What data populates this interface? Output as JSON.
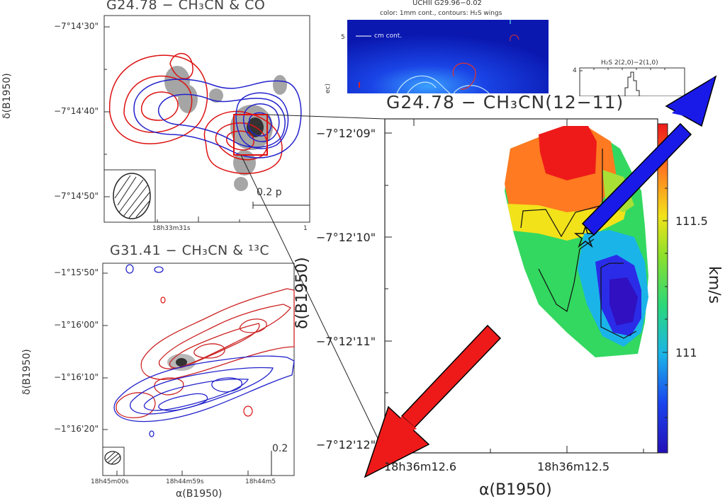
{
  "panel_a": {
    "title": "G24.78 − CH₃CN & CO",
    "ytick_1": "−7°14'30\"",
    "ytick_2": "−7°14'40\"",
    "ytick_3": "−7°14'50\"",
    "ylabel": "δ(B1950)",
    "xtick_1": "18h33m31s",
    "xtick_2": "1",
    "scalebar": "0.2 p"
  },
  "panel_b": {
    "title": "G31.41 − CH₃CN & ¹³C",
    "ytick_1": "−1°15'50\"",
    "ytick_2": "−1°16'00\"",
    "ytick_3": "−1°16'10\"",
    "ytick_4": "−1°16'20\"",
    "ylabel": "δ(B1950)",
    "xtick_1": "18h45m00s",
    "xtick_2": "18h44m59s",
    "xtick_3": "18h44m5",
    "xlabel": "α(B1950)",
    "scalebar": "0.2"
  },
  "panel_c": {
    "title": "UCHII G29.96−0.02",
    "subtitle": "color: 1mm cont., contours: H₂S wings",
    "ytick": "5",
    "legend": "cm cont.",
    "ylabel_fragment": "ec)"
  },
  "panel_d": {
    "title": "H₂S 2(2,0)−2(1,0)",
    "ytick": "4"
  },
  "panel_main": {
    "title": "G24.78 − CH₃CN(12−11)",
    "ytick_1": "−7°12'09\"",
    "ytick_2": "−7°12'10\"",
    "ytick_3": "−7°12'11\"",
    "ytick_4": "−7°12'12\"",
    "ylabel": "δ(B1950)",
    "xtick_1": "18h36m12.6",
    "xtick_2": "18h36m12.5",
    "xlabel": "α(B1950)",
    "colorbar_tick_1": "111.5",
    "colorbar_tick_2": "111",
    "colorbar_label": "km/s"
  },
  "colors": {
    "blue_lobe": "#1a1aee",
    "red_lobe": "#ee1a1a",
    "axis": "#333333"
  }
}
